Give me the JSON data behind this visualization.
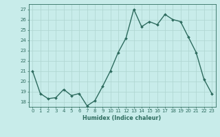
{
  "x": [
    0,
    1,
    2,
    3,
    4,
    5,
    6,
    7,
    8,
    9,
    10,
    11,
    12,
    13,
    14,
    15,
    16,
    17,
    18,
    19,
    20,
    21,
    22,
    23
  ],
  "y": [
    21.0,
    18.8,
    18.3,
    18.4,
    19.2,
    18.6,
    18.8,
    17.6,
    18.1,
    19.5,
    21.0,
    22.8,
    24.2,
    27.0,
    25.3,
    25.8,
    25.5,
    26.5,
    26.0,
    25.8,
    24.3,
    22.8,
    20.2,
    18.8
  ],
  "line_color": "#2d6b5e",
  "marker": "D",
  "markersize": 2.0,
  "linewidth": 1.0,
  "bg_color": "#c8ecea",
  "grid_color": "#aed4d0",
  "tick_color": "#2d6b5e",
  "label_color": "#2d6b5e",
  "xlabel": "Humidex (Indice chaleur)",
  "ylim": [
    17.5,
    27.5
  ],
  "yticks": [
    18,
    19,
    20,
    21,
    22,
    23,
    24,
    25,
    26,
    27
  ],
  "xticks": [
    0,
    1,
    2,
    3,
    4,
    5,
    6,
    7,
    8,
    9,
    10,
    11,
    12,
    13,
    14,
    15,
    16,
    17,
    18,
    19,
    20,
    21,
    22,
    23
  ],
  "xlabel_fontsize": 5.8,
  "tick_fontsize": 5.0
}
